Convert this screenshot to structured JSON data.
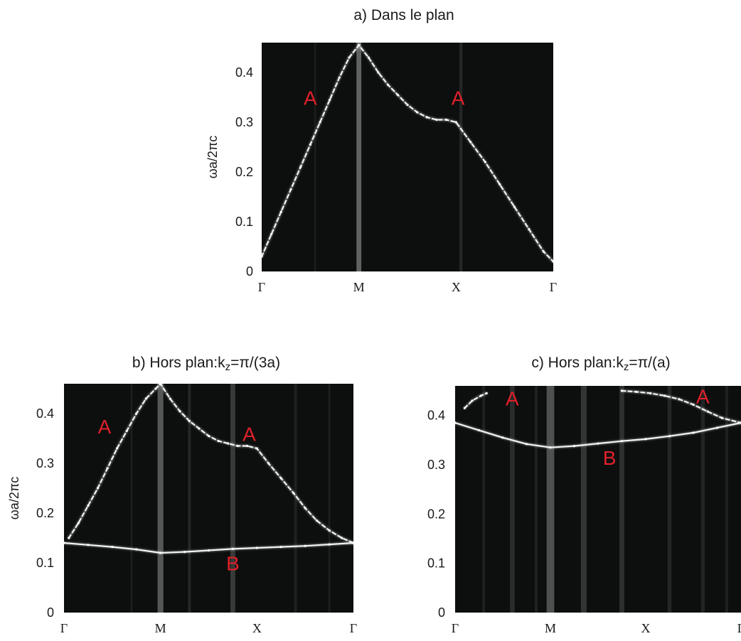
{
  "chart_data": [
    {
      "type": "heatmap",
      "title": "a) Dans le plan",
      "ylabel": "ωa/2πc",
      "xlabel": "",
      "x_ticks": [
        "Γ",
        "M",
        "X",
        "Γ"
      ],
      "y_ticks": [
        "0",
        "0.1",
        "0.2",
        "0.3",
        "0.4"
      ],
      "ylim": [
        0,
        0.46
      ],
      "xlim": [
        0,
        3
      ],
      "grid": false,
      "legend": "none",
      "colors": {
        "background": "#0c0f0e",
        "band": "#f2f2f2"
      },
      "series": [
        {
          "name": "A",
          "x": [
            0.0,
            0.1,
            0.2,
            0.3,
            0.4,
            0.5,
            0.6,
            0.7,
            0.8,
            0.9,
            1.0,
            1.1,
            1.2,
            1.3,
            1.4,
            1.5,
            1.6,
            1.7,
            1.8,
            1.9,
            2.0,
            2.15,
            2.3,
            2.45,
            2.6,
            2.75,
            2.9,
            3.0
          ],
          "y": [
            0.03,
            0.075,
            0.12,
            0.165,
            0.21,
            0.255,
            0.3,
            0.345,
            0.39,
            0.43,
            0.455,
            0.43,
            0.4,
            0.375,
            0.355,
            0.335,
            0.32,
            0.31,
            0.305,
            0.305,
            0.3,
            0.26,
            0.22,
            0.175,
            0.13,
            0.085,
            0.04,
            0.02
          ]
        }
      ],
      "annotations": [
        {
          "text": "A",
          "x": 0.5,
          "y": 0.335
        },
        {
          "text": "A",
          "x": 2.02,
          "y": 0.335
        }
      ]
    },
    {
      "type": "heatmap",
      "title": "b) Hors plan:k",
      "title_sub": "z",
      "title_rest": "=π/(3a)",
      "ylabel": "ωa/2πc",
      "xlabel": "",
      "x_ticks": [
        "Γ",
        "M",
        "X",
        "Γ"
      ],
      "y_ticks": [
        "0",
        "0.1",
        "0.2",
        "0.3",
        "0.4"
      ],
      "ylim": [
        0,
        0.46
      ],
      "xlim": [
        0,
        3
      ],
      "grid": false,
      "legend": "none",
      "colors": {
        "background": "#0c0f0e",
        "band": "#f2f2f2"
      },
      "series": [
        {
          "name": "A",
          "x": [
            0.05,
            0.15,
            0.25,
            0.35,
            0.45,
            0.55,
            0.65,
            0.75,
            0.85,
            0.95,
            1.0,
            1.1,
            1.2,
            1.3,
            1.4,
            1.5,
            1.6,
            1.7,
            1.8,
            1.9,
            2.0,
            2.12,
            2.25,
            2.38,
            2.5,
            2.62,
            2.75,
            2.88,
            3.0
          ],
          "y": [
            0.15,
            0.18,
            0.215,
            0.25,
            0.29,
            0.33,
            0.365,
            0.4,
            0.43,
            0.45,
            0.46,
            0.43,
            0.405,
            0.385,
            0.37,
            0.355,
            0.345,
            0.34,
            0.335,
            0.335,
            0.33,
            0.3,
            0.27,
            0.24,
            0.21,
            0.185,
            0.165,
            0.15,
            0.14
          ]
        },
        {
          "name": "B",
          "x": [
            0.0,
            0.25,
            0.5,
            0.75,
            1.0,
            1.25,
            1.5,
            1.75,
            2.0,
            2.25,
            2.5,
            2.75,
            3.0
          ],
          "y": [
            0.14,
            0.136,
            0.132,
            0.127,
            0.12,
            0.122,
            0.125,
            0.128,
            0.13,
            0.132,
            0.134,
            0.137,
            0.14
          ]
        }
      ],
      "annotations": [
        {
          "text": "A",
          "x": 0.42,
          "y": 0.36
        },
        {
          "text": "A",
          "x": 1.92,
          "y": 0.345
        },
        {
          "text": "B",
          "x": 1.75,
          "y": 0.085
        }
      ]
    },
    {
      "type": "heatmap",
      "title": "c) Hors plan:k",
      "title_sub": "z",
      "title_rest": "=π/(a)",
      "ylabel": "",
      "xlabel": "",
      "x_ticks": [
        "Γ",
        "M",
        "X",
        "Γ"
      ],
      "y_ticks": [
        "0",
        "0.1",
        "0.2",
        "0.3",
        "0.4"
      ],
      "ylim": [
        0,
        0.46
      ],
      "xlim": [
        0,
        3
      ],
      "grid": false,
      "legend": "none",
      "colors": {
        "background": "#0c0f0e",
        "band": "#f2f2f2"
      },
      "series": [
        {
          "name": "A",
          "x": [
            0.1,
            0.18,
            0.27,
            0.33
          ],
          "y": [
            0.415,
            0.43,
            0.44,
            0.445
          ]
        },
        {
          "name": "A",
          "x": [
            1.75,
            1.9,
            2.05,
            2.2,
            2.35,
            2.5,
            2.65,
            2.8,
            3.0
          ],
          "y": [
            0.45,
            0.448,
            0.445,
            0.44,
            0.433,
            0.422,
            0.408,
            0.395,
            0.385
          ]
        },
        {
          "name": "B",
          "x": [
            0.0,
            0.25,
            0.5,
            0.75,
            1.0,
            1.25,
            1.5,
            1.75,
            2.0,
            2.25,
            2.5,
            2.75,
            3.0
          ],
          "y": [
            0.385,
            0.37,
            0.355,
            0.342,
            0.335,
            0.338,
            0.343,
            0.348,
            0.352,
            0.358,
            0.365,
            0.375,
            0.385
          ]
        }
      ],
      "annotations": [
        {
          "text": "A",
          "x": 0.6,
          "y": 0.42
        },
        {
          "text": "A",
          "x": 2.6,
          "y": 0.425
        },
        {
          "text": "B",
          "x": 1.62,
          "y": 0.3
        }
      ]
    }
  ]
}
